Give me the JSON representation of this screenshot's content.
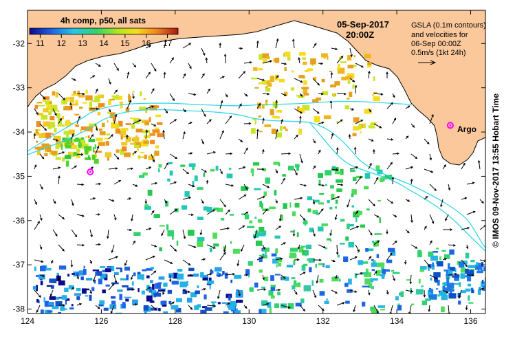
{
  "header": {
    "date": "05-Sep-2017",
    "time": "20:00Z"
  },
  "colorbar": {
    "title": "4h comp, p50, all sats",
    "ticks": [
      "11",
      "12",
      "13",
      "14",
      "15",
      "16",
      "17"
    ],
    "min": 10.5,
    "max": 17.5
  },
  "legend": {
    "lines": [
      "GSLA (0.1m contours)",
      "and velocities for",
      "06-Sep 00:00Z",
      "0.5m/s (1kt 24h)"
    ]
  },
  "argo": {
    "label": "Argo",
    "markers": [
      {
        "lon": 135.45,
        "lat": -33.85
      },
      {
        "lon": 125.7,
        "lat": -34.9
      }
    ]
  },
  "credit": "© IMOS 09-Nov-2017 13:55 Hobart Time",
  "axes": {
    "x_ticks": [
      "124",
      "126",
      "128",
      "130",
      "132",
      "134",
      "136"
    ],
    "x_values": [
      124,
      126,
      128,
      130,
      132,
      134,
      136
    ],
    "y_ticks": [
      "-32",
      "-33",
      "-34",
      "-35",
      "-36",
      "-37",
      "-38"
    ],
    "y_values": [
      -32,
      -33,
      -34,
      -35,
      -36,
      -37,
      -38
    ],
    "lon_range": [
      124,
      136.4
    ],
    "lat_range": [
      -31.25,
      -38.1
    ]
  },
  "colors": {
    "land": "#fac89a",
    "contour": "#30d8e8",
    "argo": "#ff00ff",
    "arrow": "#000000"
  }
}
